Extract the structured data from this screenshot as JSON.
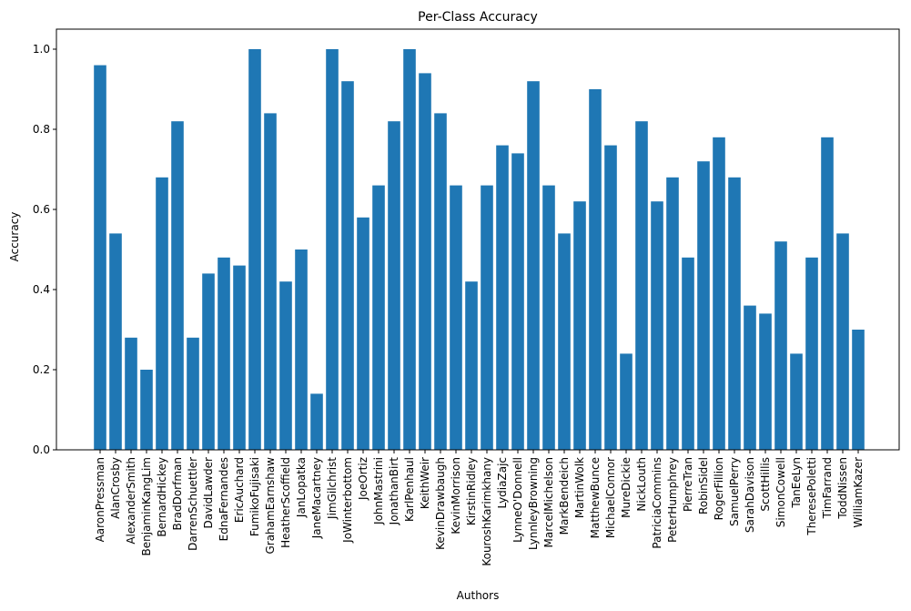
{
  "chart_data": {
    "type": "bar",
    "title": "Per-Class Accuracy",
    "xlabel": "Authors",
    "ylabel": "Accuracy",
    "ylim": [
      0,
      1.05
    ],
    "yticks": [
      "0.0",
      "0.2",
      "0.4",
      "0.6",
      "0.8",
      "1.0"
    ],
    "grid": false,
    "bar_color": "#1f77b4",
    "categories": [
      "AaronPressman",
      "AlanCrosby",
      "AlexanderSmith",
      "BenjaminKangLim",
      "BernardHickey",
      "BradDorfman",
      "DarrenSchuettler",
      "DavidLawder",
      "EdnaFernandes",
      "EricAuchard",
      "FumikoFujisaki",
      "GrahamEarnshaw",
      "HeatherScoffield",
      "JanLopatka",
      "JaneMacartney",
      "JimGilchrist",
      "JoWinterbottom",
      "JoeOrtiz",
      "JohnMastrini",
      "JonathanBirt",
      "KarlPenhaul",
      "KeithWeir",
      "KevinDrawbaugh",
      "KevinMorrison",
      "KirstinRidley",
      "KouroshKarimkhany",
      "LydiaZajc",
      "LynneO'Donnell",
      "LynnleyBrowning",
      "MarcelMichelson",
      "MarkBendeich",
      "MartinWolk",
      "MatthewBunce",
      "MichaelConnor",
      "MureDickie",
      "NickLouth",
      "PatriciaCommins",
      "PeterHumphrey",
      "PierreTran",
      "RobinSidel",
      "RogerFillion",
      "SamuelPerry",
      "SarahDavison",
      "ScottHillis",
      "SimonCowell",
      "TanEeLyn",
      "TheresePoletti",
      "TimFarrand",
      "ToddNissen",
      "WilliamKazer"
    ],
    "values": [
      0.96,
      0.54,
      0.28,
      0.2,
      0.68,
      0.82,
      0.28,
      0.44,
      0.48,
      0.46,
      1.0,
      0.84,
      0.42,
      0.5,
      0.14,
      1.0,
      0.92,
      0.58,
      0.66,
      0.82,
      1.0,
      0.94,
      0.84,
      0.66,
      0.42,
      0.66,
      0.76,
      0.74,
      0.92,
      0.66,
      0.54,
      0.62,
      0.9,
      0.76,
      0.24,
      0.82,
      0.62,
      0.68,
      0.48,
      0.72,
      0.78,
      0.68,
      0.36,
      0.34,
      0.52,
      0.24,
      0.48,
      0.78,
      0.54,
      0.3
    ]
  }
}
